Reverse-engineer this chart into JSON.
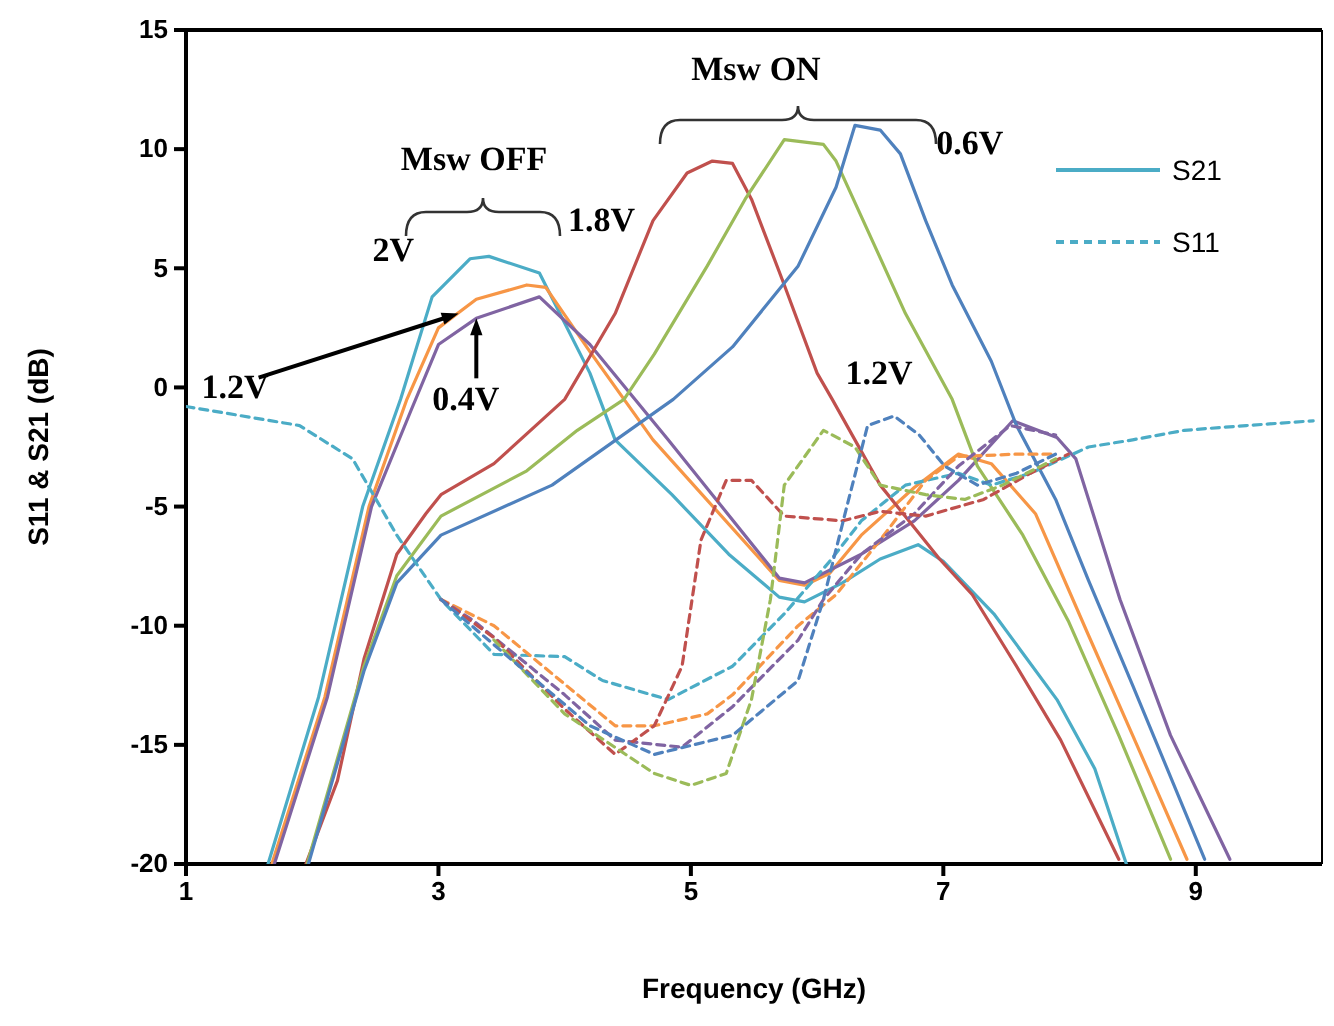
{
  "chart_data": {
    "type": "line",
    "xlabel": "Frequency (GHz)",
    "ylabel": "S11 & S21 (dB)",
    "xlim": [
      1,
      10
    ],
    "xticks": [
      1,
      3,
      5,
      7,
      9
    ],
    "ylim": [
      -20,
      15
    ],
    "yticks": [
      -20,
      -15,
      -10,
      -5,
      0,
      5,
      10,
      15
    ],
    "grid": false,
    "legend": "top right",
    "marker": "none",
    "annotations": [
      "Msw OFF",
      "Msw ON",
      {
        "text": "2V",
        "x": 3.25,
        "y": 5.4
      },
      {
        "text": "1.2V",
        "x": 3.16,
        "y": 3.1
      },
      {
        "text": "0.4V",
        "x": 3.3,
        "y": 2.9
      },
      {
        "text": "1.8V",
        "x": 4.97,
        "y": 9
      },
      {
        "text": "1.2V",
        "x": 6.7,
        "y": 3.1
      },
      {
        "text": "0.6V",
        "x": 6.5,
        "y": 10.8
      }
    ],
    "series": [
      {
        "name": "S21",
        "color": "#4bacc6",
        "line_style": "solid",
        "x": [
          1.65,
          2.05,
          2.4,
          2.7,
          2.95,
          3.25,
          3.4,
          3.8,
          4.2,
          4.4,
          4.85,
          5.3,
          5.7,
          5.9,
          6.2,
          6.5,
          6.8,
          7.0,
          7.4,
          7.9,
          8.2,
          8.45
        ],
        "values": [
          -20,
          -13,
          -5,
          -0.5,
          3.8,
          5.4,
          5.5,
          4.8,
          0.6,
          -2.2,
          -4.5,
          -7,
          -8.8,
          -9,
          -8.2,
          -7.2,
          -6.6,
          -7.3,
          -9.5,
          -13.1,
          -16,
          -20
        ]
      },
      {
        "color": "#f79646",
        "line_style": "solid",
        "x": [
          1.68,
          2.1,
          2.45,
          2.75,
          3.0,
          3.3,
          3.7,
          3.85,
          4.2,
          4.7,
          5.7,
          5.9,
          6.1,
          6.35,
          6.77,
          7.12,
          7.38,
          7.73,
          8.15,
          8.5,
          8.93
        ],
        "values": [
          -20,
          -13,
          -5,
          -0.5,
          2.5,
          3.7,
          4.3,
          4.2,
          1.5,
          -2.2,
          -8.1,
          -8.3,
          -7.8,
          -6.2,
          -4.2,
          -2.8,
          -3.2,
          -5.3,
          -10.4,
          -14.6,
          -19.8
        ]
      },
      {
        "color": "#8064a2",
        "line_style": "solid",
        "x": [
          1.7,
          2.12,
          2.47,
          2.78,
          3.0,
          3.3,
          3.8,
          4.2,
          4.82,
          5.7,
          5.9,
          6.35,
          6.77,
          7.12,
          7.55,
          7.9,
          8.05,
          8.4,
          8.8,
          9.27
        ],
        "values": [
          -20,
          -13,
          -5,
          -1,
          1.8,
          2.9,
          3.8,
          1.8,
          -2.2,
          -8,
          -8.2,
          -7,
          -5.6,
          -3.9,
          -1.4,
          -2.1,
          -3,
          -8.9,
          -14.6,
          -19.8
        ]
      },
      {
        "color": "#c0504d",
        "line_style": "solid",
        "x": [
          1.95,
          2.2,
          2.41,
          2.67,
          2.9,
          3.02,
          3.44,
          4.0,
          4.4,
          4.7,
          4.97,
          5.17,
          5.33,
          5.48,
          5.74,
          6.0,
          6.12,
          6.5,
          6.97,
          7.23,
          7.58,
          7.93,
          8.39
        ],
        "values": [
          -20,
          -16.5,
          -11.4,
          -7,
          -5.3,
          -4.5,
          -3.2,
          -0.5,
          3.1,
          7,
          9,
          9.5,
          9.4,
          7.9,
          4.3,
          0.6,
          -0.5,
          -4.1,
          -7.2,
          -8.7,
          -11.7,
          -14.8,
          -19.8
        ]
      },
      {
        "color": "#9bbb59",
        "line_style": "solid",
        "x": [
          1.96,
          2.41,
          2.67,
          3.02,
          3.7,
          4.1,
          4.47,
          4.71,
          5.13,
          5.43,
          5.74,
          6.05,
          6.15,
          6.46,
          6.7,
          7.07,
          7.27,
          7.63,
          7.99,
          8.39,
          8.8
        ],
        "values": [
          -20,
          -11.7,
          -7.9,
          -5.4,
          -3.5,
          -1.8,
          -0.5,
          1.4,
          5.1,
          7.9,
          10.4,
          10.2,
          9.5,
          5.9,
          3.1,
          -0.5,
          -3.3,
          -6.2,
          -9.8,
          -14.6,
          -19.8
        ]
      },
      {
        "color": "#4f81bd",
        "line_style": "solid",
        "x": [
          1.97,
          2.41,
          2.67,
          3.02,
          3.9,
          4.86,
          5.33,
          5.85,
          6.15,
          6.3,
          6.5,
          6.66,
          6.86,
          7.07,
          7.38,
          7.58,
          7.89,
          8.15,
          8.5,
          9.07
        ],
        "values": [
          -20,
          -11.9,
          -8.2,
          -6.2,
          -4.1,
          -0.5,
          1.7,
          5.1,
          8.4,
          11,
          10.8,
          9.8,
          7,
          4.3,
          1.1,
          -1.6,
          -4.7,
          -8.1,
          -12.5,
          -19.8
        ]
      },
      {
        "name": "S11",
        "color": "#4bacc6",
        "line_style": "dashed",
        "x": [
          1,
          1.9,
          2.32,
          2.67,
          3.02,
          3.44,
          4.0,
          4.3,
          4.82,
          5.33,
          5.74,
          6.1,
          6.35,
          6.7,
          7.12,
          7.38,
          7.69,
          8.15,
          8.5,
          8.91,
          9.4,
          9.93
        ],
        "values": [
          -0.8,
          -1.6,
          -3,
          -6.2,
          -8.9,
          -11.2,
          -11.3,
          -12.3,
          -13.1,
          -11.7,
          -9.5,
          -7.3,
          -5.6,
          -4.1,
          -3.6,
          -4.1,
          -3.6,
          -2.5,
          -2.2,
          -1.8,
          -1.6,
          -1.4
        ]
      },
      {
        "color": "#f79646",
        "line_style": "dashed",
        "x": [
          3.02,
          3.44,
          4.4,
          4.71,
          5.13,
          5.33,
          5.85,
          6.15,
          6.5,
          6.86,
          7.12,
          7.58,
          7.89
        ],
        "values": [
          -8.9,
          -10,
          -14.2,
          -14.2,
          -13.7,
          -12.9,
          -10,
          -8.7,
          -6.4,
          -3.9,
          -2.9,
          -2.8,
          -2.8
        ]
      },
      {
        "color": "#8064a2",
        "line_style": "dashed",
        "x": [
          3.02,
          3.28,
          4.0,
          4.4,
          4.93,
          5.33,
          5.85,
          6.05,
          6.35,
          6.77,
          7.12,
          7.53,
          7.89
        ],
        "values": [
          -8.9,
          -9.8,
          -12.9,
          -14.8,
          -15.1,
          -13.4,
          -10.6,
          -8.9,
          -7,
          -5.3,
          -3.3,
          -1.6,
          -2
        ]
      },
      {
        "color": "#c0504d",
        "line_style": "dashed",
        "x": [
          3.02,
          3.44,
          4.0,
          4.4,
          4.71,
          4.93,
          5.08,
          5.28,
          5.48,
          5.74,
          6.2,
          6.5,
          6.86,
          7.32,
          7.69,
          7.99
        ],
        "values": [
          -8.9,
          -10.5,
          -13.5,
          -15.4,
          -14.2,
          -11.7,
          -6.4,
          -3.9,
          -3.9,
          -5.4,
          -5.6,
          -5.2,
          -5.4,
          -4.7,
          -3.6,
          -2.8
        ]
      },
      {
        "color": "#9bbb59",
        "line_style": "dashed",
        "x": [
          3.44,
          4.0,
          4.71,
          5.0,
          5.28,
          5.48,
          5.63,
          5.74,
          6.05,
          6.3,
          6.5,
          6.86,
          7.17,
          7.47,
          7.89
        ],
        "values": [
          -10.6,
          -13.7,
          -16.2,
          -16.7,
          -16.2,
          -13.1,
          -8.9,
          -4.1,
          -1.8,
          -2.5,
          -4.1,
          -4.5,
          -4.7,
          -4.1,
          -3
        ]
      },
      {
        "color": "#4f81bd",
        "line_style": "dashed",
        "x": [
          3.02,
          3.44,
          4.2,
          4.71,
          5.33,
          5.85,
          6.05,
          6.25,
          6.4,
          6.61,
          6.81,
          7.01,
          7.27,
          7.58,
          7.89
        ],
        "values": [
          -8.9,
          -10.8,
          -14.2,
          -15.4,
          -14.6,
          -12.3,
          -8.9,
          -4.7,
          -1.6,
          -1.2,
          -2,
          -3.3,
          -4.1,
          -3.6,
          -2.8
        ]
      }
    ]
  }
}
